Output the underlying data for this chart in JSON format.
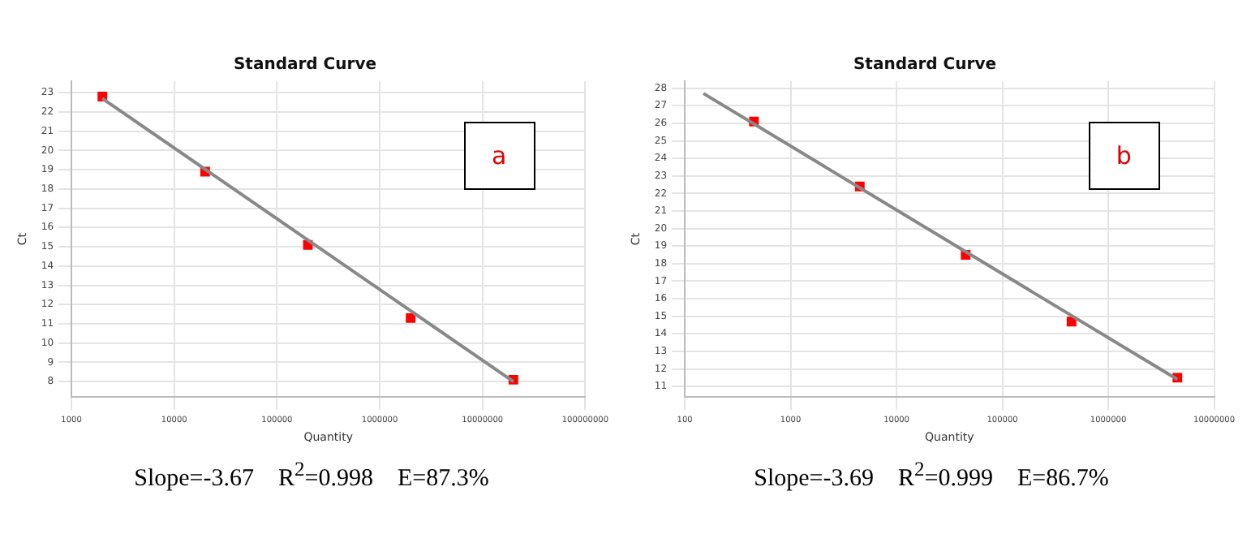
{
  "chart_data": [
    {
      "type": "scatter",
      "title": "Standard Curve",
      "xlabel": "Quantity",
      "ylabel": "Ct",
      "log": "x",
      "grid": true,
      "legend": false,
      "marker": "square",
      "xlim": [
        1000,
        100000000
      ],
      "xticks": [
        1000,
        10000,
        100000,
        1000000,
        10000000,
        100000000
      ],
      "ylim": [
        7.2,
        23.6
      ],
      "yticks": [
        8,
        9,
        10,
        11,
        12,
        13,
        14,
        15,
        16,
        17,
        18,
        19,
        20,
        21,
        22,
        23
      ],
      "series": [
        {
          "type": "line",
          "color": "#888888",
          "marker": "none",
          "x": [
            2000,
            20000000
          ],
          "values": [
            22.7,
            8.0
          ]
        },
        {
          "color": "#ff0000",
          "x": [
            2000,
            20000,
            200000,
            2000000,
            20000000
          ],
          "values": [
            22.8,
            18.9,
            15.1,
            11.3,
            8.1
          ]
        }
      ],
      "annotations": [
        "a",
        "Slope=-3.67    R$^{2}$=0.998    E=87.3%"
      ]
    },
    {
      "type": "scatter",
      "title": "Standard Curve",
      "xlabel": "Quantity",
      "ylabel": "Ct",
      "log": "x",
      "grid": true,
      "legend": false,
      "marker": "square",
      "xlim": [
        100,
        10000000
      ],
      "xticks": [
        100,
        1000,
        10000,
        100000,
        1000000,
        10000000
      ],
      "ylim": [
        10.4,
        28.4
      ],
      "yticks": [
        11,
        12,
        13,
        14,
        15,
        16,
        17,
        18,
        19,
        20,
        21,
        22,
        23,
        24,
        25,
        26,
        27,
        28
      ],
      "series": [
        {
          "type": "line",
          "color": "#888888",
          "marker": "none",
          "x": [
            150,
            4500000
          ],
          "values": [
            27.7,
            11.4
          ]
        },
        {
          "color": "#ff0000",
          "x": [
            450,
            4500,
            45000,
            450000,
            4500000
          ],
          "values": [
            26.1,
            22.4,
            18.5,
            14.7,
            11.5
          ]
        }
      ],
      "annotations": [
        "b",
        "Slope=-3.69    R$^{2}$=0.999    E=86.7%"
      ]
    }
  ]
}
